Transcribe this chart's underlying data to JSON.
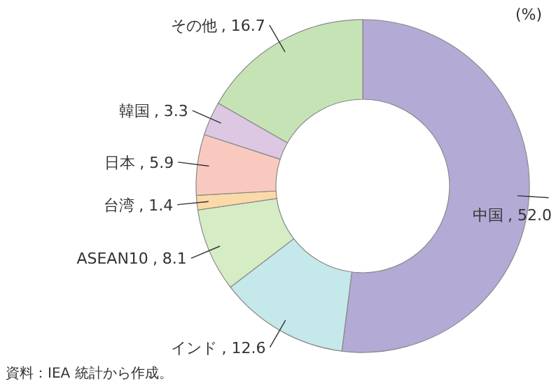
{
  "chart_data": {
    "type": "donut",
    "categories": [
      "中国",
      "インド",
      "ASEAN10",
      "台湾",
      "日本",
      "韓国",
      "その他"
    ],
    "values": [
      52.0,
      12.6,
      8.1,
      1.4,
      5.9,
      3.3,
      16.7
    ],
    "colors": [
      "#b3aad6",
      "#c5e8ea",
      "#d6ecc4",
      "#fbd9a8",
      "#f9c9c0",
      "#dcc8e3",
      "#c6e3b6"
    ],
    "value_labels": [
      ", 52.0",
      ", 12.6",
      ", 8.1",
      ", 1.4",
      ", 5.9",
      ", 3.3",
      ", 16.7"
    ],
    "annotations": [
      "(%)",
      "資料：IEA 統計から作成。"
    ]
  }
}
